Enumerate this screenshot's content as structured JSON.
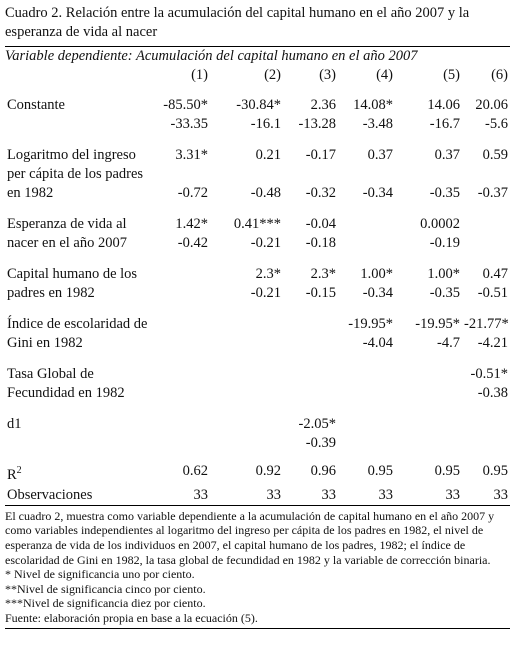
{
  "header": {
    "title": "Cuadro 2. Relación entre la acumulación del capital humano en el año 2007 y la esperanza de vida al nacer",
    "subtitle": "Variable dependiente: Acumulación del capital humano en el año 2007"
  },
  "table": {
    "columns": [
      "(1)",
      "(2)",
      "(3)",
      "(4)",
      "(5)",
      "(6)"
    ],
    "rows": [
      {
        "label": "Constante",
        "coefficients": [
          "-85.50*",
          "-30.84*",
          "2.36",
          "14.08*",
          "14.06",
          "20.06"
        ],
        "standard_errors": [
          "-33.35",
          "-16.1",
          "-13.28",
          "-3.48",
          "-16.7",
          "-5.6"
        ]
      },
      {
        "label": "Logaritmo del ingreso per cápita de los padres en 1982",
        "coefficients": [
          "3.31*",
          "0.21",
          "-0.17",
          "0.37",
          "0.37",
          "0.59"
        ],
        "standard_errors": [
          "-0.72",
          "-0.48",
          "-0.32",
          "-0.34",
          "-0.35",
          "-0.37"
        ]
      },
      {
        "label": "Esperanza de vida al nacer en el año 2007",
        "coefficients": [
          "1.42*",
          "0.41***",
          "-0.04",
          null,
          "0.0002",
          null
        ],
        "standard_errors": [
          "-0.42",
          "-0.21",
          "-0.18",
          null,
          "-0.19",
          null
        ]
      },
      {
        "label": "Capital humano de los padres en 1982",
        "coefficients": [
          null,
          "2.3*",
          "2.3*",
          "1.00*",
          "1.00*",
          "0.47"
        ],
        "standard_errors": [
          null,
          "-0.21",
          "-0.15",
          "-0.34",
          "-0.35",
          "-0.51"
        ]
      },
      {
        "label": "Índice de escolaridad de Gini en 1982",
        "coefficients": [
          null,
          null,
          null,
          "-19.95*",
          "-19.95*",
          "-21.77*"
        ],
        "standard_errors": [
          null,
          null,
          null,
          "-4.04",
          "-4.7",
          "-4.21"
        ]
      },
      {
        "label": "Tasa Global de Fecundidad en 1982",
        "coefficients": [
          null,
          null,
          null,
          null,
          null,
          "-0.51*"
        ],
        "standard_errors": [
          null,
          null,
          null,
          null,
          null,
          "-0.38"
        ]
      },
      {
        "label": "d1",
        "coefficients": [
          null,
          null,
          "-2.05*",
          null,
          null,
          null
        ],
        "standard_errors": [
          null,
          null,
          "-0.39",
          null,
          null,
          null
        ]
      }
    ],
    "summary_rows": [
      {
        "label": "R",
        "superscript": "2",
        "values": [
          "0.62",
          "0.92",
          "0.96",
          "0.95",
          "0.95",
          "0.95"
        ]
      },
      {
        "label": "Observaciones",
        "values": [
          "33",
          "33",
          "33",
          "33",
          "33",
          "33"
        ]
      }
    ]
  },
  "notes": {
    "paragraph": "El cuadro 2, muestra como variable dependiente a la acumulación de capital humano en el año 2007 y como variables independientes al logaritmo del ingreso per cápita de los padres en 1982, el nivel de esperanza de vida de los individuos en 2007, el capital humano de los padres, 1982; el índice de escolaridad de Gini en 1982, la tasa global de fecundidad en 1982 y la variable de corrección binaria.",
    "lines": [
      "* Nivel de significancia uno por ciento.",
      "**Nivel de significancia cinco por ciento.",
      "***Nivel de significancia diez por ciento.",
      "Fuente: elaboración propia en base a la ecuación (5)."
    ]
  }
}
